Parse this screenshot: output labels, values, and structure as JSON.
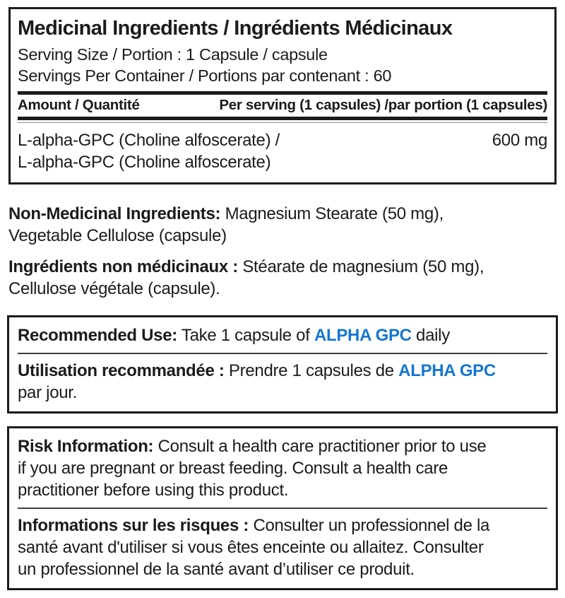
{
  "colors": {
    "accent_blue": "#1476D2",
    "text_black": "#1b1b1b"
  },
  "medicinal_panel": {
    "title": "Medicinal Ingredients / Ingrédients Médicinaux",
    "serving_size": "Serving Size / Portion : 1 Capsule / capsule",
    "servings_per_container": "Servings Per Container / Portions par contenant : 60",
    "table": {
      "col_amount": "Amount / Quantité",
      "col_per_serving": "Per serving (1 capsules) /par portion (1 capsules)",
      "rows": [
        {
          "name": "L-alpha-GPC (Choline alfoscerate) /\nL-alpha-GPC (Choline alfoscerate)",
          "amount": "600 mg"
        }
      ]
    }
  },
  "non_medicinal": {
    "en_label": "Non-Medicinal Ingredients:",
    "en_text": " Magnesium Stearate (50 mg),\nVegetable Cellulose (capsule)",
    "fr_label": "Ingrédients non médicinaux :",
    "fr_text": " Stéarate de magnesium (50 mg),\nCellulose végétale (capsule)."
  },
  "recommended_use": {
    "en_label": "Recommended Use:",
    "en_before": " Take 1 capsule of ",
    "en_brand": "ALPHA GPC",
    "en_after": " daily",
    "fr_label": "Utilisation recommandée :",
    "fr_before": " Prendre 1 capsules de ",
    "fr_brand": "ALPHA GPC",
    "fr_after": "\npar jour."
  },
  "risk_information": {
    "en_label": "Risk Information:",
    "en_text": " Consult a health care practitioner prior to use\nif you are pregnant or breast feeding. Consult a health care\npractitioner before using this product.",
    "fr_label": "Informations sur les risques :",
    "fr_text": " Consulter un professionnel de la\nsanté avant d'utiliser si vous êtes enceinte ou allaitez. Consulter\nun professionnel de la santé avant d’utiliser ce produit."
  }
}
